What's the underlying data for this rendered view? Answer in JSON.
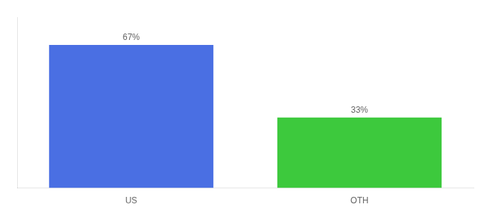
{
  "chart_data": {
    "type": "bar",
    "categories": [
      "US",
      "OTH"
    ],
    "values": [
      67,
      33
    ],
    "value_labels": [
      "67%",
      "33%"
    ],
    "colors": [
      "#4A6FE3",
      "#3DC93D"
    ],
    "ylim": [
      0,
      80
    ],
    "grid": false,
    "data_labels": true,
    "tick_labels": "x"
  }
}
